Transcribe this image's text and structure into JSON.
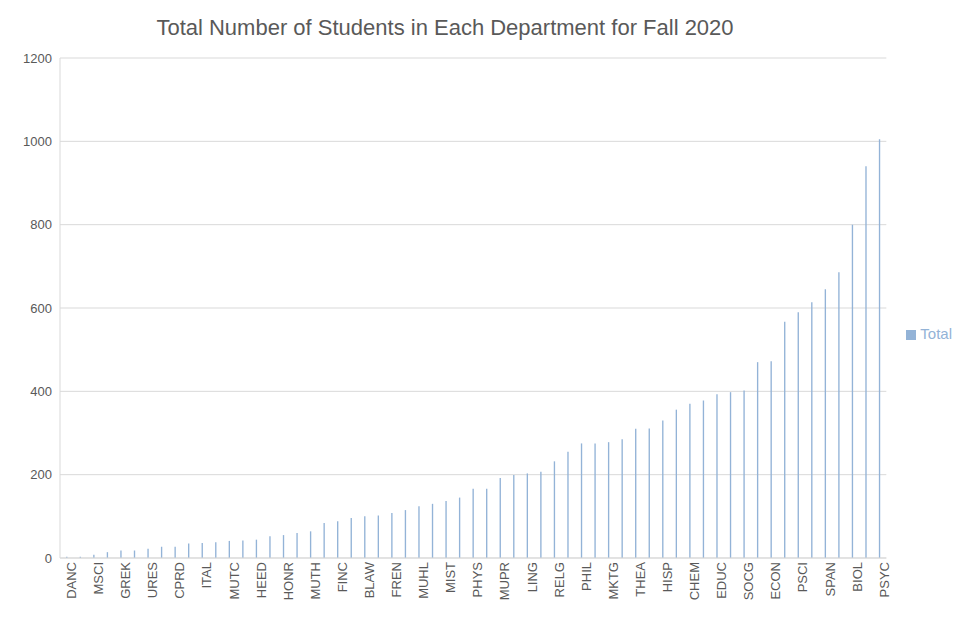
{
  "chart_data": {
    "type": "bar",
    "title": "Total Number of Students in Each Department for Fall 2020",
    "categories": [
      "DANC",
      null,
      "MSCI",
      null,
      "GREK",
      null,
      "URES",
      null,
      "CPRD",
      null,
      "ITAL",
      null,
      "MUTC",
      null,
      "HEED",
      null,
      "HONR",
      null,
      "MUTH",
      null,
      "FINC",
      null,
      "BLAW",
      null,
      "FREN",
      null,
      "MUHL",
      null,
      "MIST",
      null,
      "PHYS",
      null,
      "MUPR",
      null,
      "LING",
      null,
      "RELG",
      null,
      "PHIL",
      null,
      "MKTG",
      null,
      "THEA",
      null,
      "HISP",
      null,
      "CHEM",
      null,
      "EDUC",
      null,
      "SOCG",
      null,
      "ECON",
      null,
      "PSCI",
      null,
      "SPAN",
      null,
      "BIOL",
      null,
      "PSYC"
    ],
    "series": [
      {
        "name": "Total",
        "color": "#93b3d7",
        "values": [
          3,
          3,
          8,
          14,
          18,
          18,
          22,
          27,
          27,
          35,
          36,
          38,
          41,
          42,
          44,
          52,
          55,
          60,
          64,
          84,
          88,
          96,
          100,
          102,
          108,
          115,
          124,
          130,
          137,
          145,
          166,
          166,
          192,
          199,
          203,
          207,
          232,
          255,
          275,
          275,
          278,
          285,
          310,
          311,
          330,
          356,
          370,
          378,
          393,
          398,
          402,
          470,
          472,
          567,
          590,
          614,
          645,
          686,
          800,
          940,
          1005
        ]
      }
    ],
    "ylim": [
      0,
      1200
    ],
    "yticks": [
      0,
      200,
      400,
      600,
      800,
      1000,
      1200
    ],
    "grid": true,
    "legend": "right"
  }
}
